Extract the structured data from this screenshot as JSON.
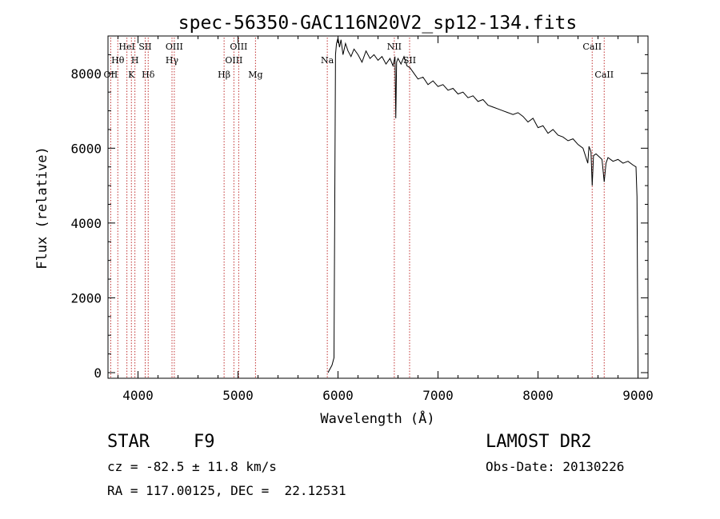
{
  "chart_data": {
    "type": "line",
    "title": "spec-56350-GAC116N20V2_sp12-134.fits",
    "xlabel": "Wavelength (Å)",
    "ylabel": "Flux (relative)",
    "xlim": [
      3700,
      9100
    ],
    "ylim": [
      -150,
      9000
    ],
    "xticks": [
      4000,
      5000,
      6000,
      7000,
      8000,
      9000
    ],
    "yticks": [
      0,
      2000,
      4000,
      6000,
      8000
    ],
    "grid": false,
    "line_color": "#000000",
    "marker_color": "#c03030",
    "series": [
      {
        "x": [
          5900,
          5940,
          5960,
          5975,
          5985,
          6000,
          6015,
          6030,
          6050,
          6075,
          6100,
          6130,
          6160,
          6200,
          6240,
          6280,
          6320,
          6360,
          6400,
          6440,
          6480,
          6520,
          6550,
          6570,
          6578,
          6586,
          6600,
          6630,
          6660,
          6690,
          6720,
          6760,
          6800,
          6850,
          6900,
          6950,
          7000,
          7050,
          7100,
          7150,
          7200,
          7250,
          7300,
          7350,
          7400,
          7450,
          7500,
          7550,
          7600,
          7650,
          7700,
          7750,
          7800,
          7850,
          7900,
          7950,
          8000,
          8050,
          8100,
          8150,
          8200,
          8250,
          8300,
          8350,
          8400,
          8450,
          8498,
          8510,
          8530,
          8542,
          8555,
          8580,
          8620,
          8640,
          8662,
          8680,
          8700,
          8750,
          8800,
          8850,
          8900,
          8950,
          8980,
          8990,
          8998,
          9000
        ],
        "y": [
          0,
          200,
          400,
          8500,
          8800,
          8950,
          8700,
          8900,
          8500,
          8800,
          8600,
          8450,
          8650,
          8500,
          8300,
          8600,
          8400,
          8500,
          8350,
          8450,
          8250,
          8400,
          8200,
          8450,
          6800,
          8300,
          8400,
          8250,
          8450,
          8200,
          8150,
          8000,
          7850,
          7900,
          7700,
          7800,
          7650,
          7700,
          7550,
          7600,
          7450,
          7500,
          7350,
          7400,
          7250,
          7300,
          7150,
          7100,
          7050,
          7000,
          6950,
          6900,
          6950,
          6850,
          6700,
          6800,
          6550,
          6600,
          6400,
          6500,
          6350,
          6300,
          6200,
          6250,
          6100,
          6000,
          5600,
          6050,
          5900,
          5000,
          5800,
          5850,
          5750,
          5700,
          5100,
          5600,
          5750,
          5650,
          5700,
          5600,
          5650,
          5550,
          5500,
          4700,
          1000,
          0
        ]
      }
    ],
    "line_markers": [
      {
        "wl": 3727,
        "label": "OII",
        "row": 3
      },
      {
        "wl": 3798,
        "label": "Hθ",
        "row": 2
      },
      {
        "wl": 3889,
        "label": "HeI",
        "row": 1
      },
      {
        "wl": 3934,
        "label": "K",
        "row": 3
      },
      {
        "wl": 3969,
        "label": "H",
        "row": 2
      },
      {
        "wl": 4072,
        "label": "SII",
        "row": 1
      },
      {
        "wl": 4102,
        "label": "Hδ",
        "row": 3
      },
      {
        "wl": 4340,
        "label": "Hγ",
        "row": 2
      },
      {
        "wl": 4363,
        "label": "OIII",
        "row": 1
      },
      {
        "wl": 4861,
        "label": "Hβ",
        "row": 3
      },
      {
        "wl": 4959,
        "label": "OIII",
        "row": 2
      },
      {
        "wl": 5007,
        "label": "OIII",
        "row": 1
      },
      {
        "wl": 5175,
        "label": "Mg",
        "row": 3
      },
      {
        "wl": 5893,
        "label": "Na",
        "row": 2
      },
      {
        "wl": 6563,
        "label": "NII",
        "row": 1
      },
      {
        "wl": 6716,
        "label": "SII",
        "row": 2
      },
      {
        "wl": 8542,
        "label": "CaII",
        "row": 1
      },
      {
        "wl": 8662,
        "label": "CaII",
        "row": 3
      }
    ]
  },
  "info": {
    "class": "STAR",
    "subclass": "F9",
    "survey": "LAMOST DR2",
    "cz": "cz = -82.5 ± 11.8 km/s",
    "obs_date": "Obs-Date: 20130226",
    "coords": "RA = 117.00125, DEC =  22.12531"
  }
}
